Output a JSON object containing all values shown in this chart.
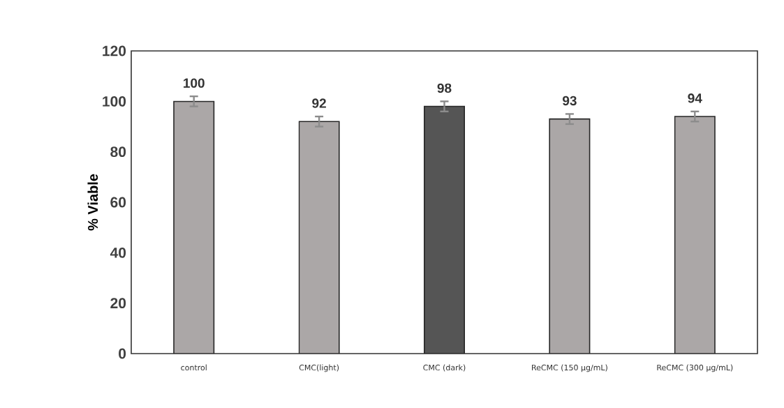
{
  "chart_data": {
    "type": "bar",
    "ylabel": "% Viable",
    "categories": [
      "control",
      "CMC(light)",
      "CMC (dark)",
      "ReCMC (150 μg/mL)",
      "ReCMC (300 μg/mL)"
    ],
    "values": [
      100,
      92,
      98,
      93,
      94
    ],
    "errors": [
      2,
      2,
      2,
      2,
      2
    ],
    "colors": [
      "#aba7a7",
      "#aba7a7",
      "#555555",
      "#aba7a7",
      "#aba7a7"
    ],
    "ylim": [
      0,
      120
    ],
    "yticks": [
      0,
      20,
      40,
      60,
      80,
      100,
      120
    ],
    "data_labels": true,
    "grid": false
  }
}
